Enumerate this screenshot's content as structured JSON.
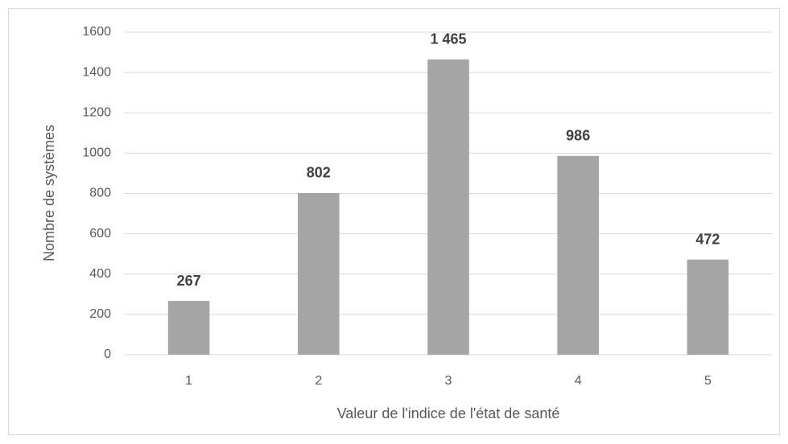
{
  "chart_data": {
    "type": "bar",
    "x_label": "Valeur de l'indice de l'état de santé",
    "y_label": "Nombre de systèmes",
    "categories": [
      "1",
      "2",
      "3",
      "4",
      "5"
    ],
    "values": [
      267,
      802,
      1465,
      986,
      472
    ],
    "value_labels": [
      "267",
      "802",
      "1 465",
      "986",
      "472"
    ],
    "color": "#a5a5a5",
    "ylim": [
      0,
      1600
    ],
    "yticks": [
      0,
      200,
      400,
      600,
      800,
      1000,
      1200,
      1400,
      1600
    ],
    "grid": true
  }
}
